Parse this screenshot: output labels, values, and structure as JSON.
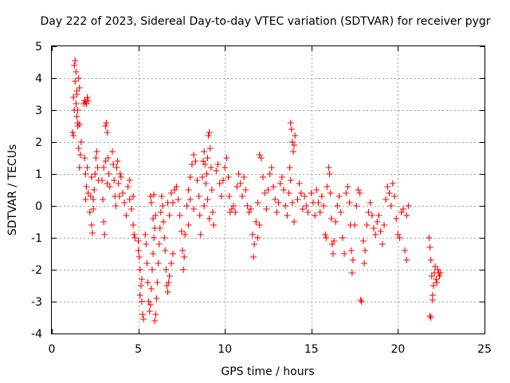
{
  "chart_data": {
    "type": "scatter",
    "title": "Day 222 of 2023, Sidereal Day-to-day VTEC variation (SDTVAR) for receiver pygr",
    "xlabel": "GPS time / hours",
    "ylabel": "SDTVAR / TECUs",
    "xlim": [
      0,
      25
    ],
    "ylim": [
      -4,
      5
    ],
    "xticks": [
      0,
      5,
      10,
      15,
      20,
      25
    ],
    "yticks": [
      -4,
      -3,
      -2,
      -1,
      0,
      1,
      2,
      3,
      4,
      5
    ],
    "xtick_labels": [
      "0",
      "5",
      "10",
      "15",
      "20",
      "25"
    ],
    "ytick_labels": [
      "-4",
      "-3",
      "-2",
      "-1",
      "0",
      "1",
      "2",
      "3",
      "4",
      "5"
    ],
    "grid": true,
    "marker": "+",
    "color": "#ff0000",
    "series": [
      {
        "name": "SDTVAR",
        "points": [
          [
            1.2,
            2.3
          ],
          [
            1.25,
            3.4
          ],
          [
            1.3,
            4.4
          ],
          [
            1.35,
            4.55
          ],
          [
            1.4,
            4.2
          ],
          [
            1.45,
            3.6
          ],
          [
            1.5,
            2.6
          ],
          [
            1.55,
            1.8
          ],
          [
            1.6,
            1.2
          ],
          [
            1.65,
            1.6
          ],
          [
            1.7,
            2.0
          ],
          [
            1.35,
            3.9
          ],
          [
            1.4,
            3.2
          ],
          [
            1.45,
            2.8
          ],
          [
            1.5,
            3.0
          ],
          [
            1.55,
            4.0
          ],
          [
            1.6,
            3.7
          ],
          [
            1.25,
            2.2
          ],
          [
            1.3,
            3.0
          ],
          [
            1.5,
            2.5
          ],
          [
            1.6,
            2.55
          ],
          [
            1.45,
            3.5
          ],
          [
            1.9,
            3.3
          ],
          [
            1.95,
            3.25
          ],
          [
            2.0,
            3.2
          ],
          [
            2.05,
            3.4
          ],
          [
            2.1,
            3.3
          ],
          [
            1.85,
            3.2
          ],
          [
            1.9,
            1.5
          ],
          [
            1.95,
            1.0
          ],
          [
            2.0,
            0.6
          ],
          [
            2.05,
            1.2
          ],
          [
            2.1,
            0.4
          ],
          [
            1.95,
            0.2
          ],
          [
            2.2,
            -0.2
          ],
          [
            2.25,
            0.3
          ],
          [
            2.3,
            -0.6
          ],
          [
            2.35,
            -0.85
          ],
          [
            2.4,
            -0.1
          ],
          [
            2.45,
            0.5
          ],
          [
            2.5,
            1.0
          ],
          [
            2.55,
            1.5
          ],
          [
            2.6,
            1.7
          ],
          [
            2.65,
            1.2
          ],
          [
            2.7,
            0.8
          ],
          [
            2.3,
            0.9
          ],
          [
            2.4,
            0.2
          ],
          [
            2.9,
            0.8
          ],
          [
            2.95,
            0.2
          ],
          [
            3.0,
            -0.5
          ],
          [
            3.05,
            -0.9
          ],
          [
            3.0,
            1.2
          ],
          [
            3.1,
            2.5
          ],
          [
            3.15,
            2.6
          ],
          [
            3.2,
            2.3
          ],
          [
            3.25,
            1.5
          ],
          [
            3.3,
            1.0
          ],
          [
            3.35,
            0.6
          ],
          [
            3.1,
            1.4
          ],
          [
            3.2,
            0.7
          ],
          [
            3.5,
            1.7
          ],
          [
            3.55,
            1.3
          ],
          [
            3.6,
            0.8
          ],
          [
            3.65,
            0.3
          ],
          [
            3.7,
            0.0
          ],
          [
            3.75,
            1.2
          ],
          [
            3.8,
            1.4
          ],
          [
            3.85,
            0.7
          ],
          [
            3.9,
            0.3
          ],
          [
            3.95,
            1.0
          ],
          [
            4.0,
            0.9
          ],
          [
            4.1,
            0.4
          ],
          [
            4.2,
            0.1
          ],
          [
            4.3,
            -0.3
          ],
          [
            4.4,
            0.6
          ],
          [
            4.5,
            0.2
          ],
          [
            4.6,
            -0.1
          ],
          [
            4.7,
            -0.6
          ],
          [
            4.75,
            -0.9
          ],
          [
            4.8,
            -1.0
          ],
          [
            4.7,
            0.3
          ],
          [
            4.5,
            0.8
          ],
          [
            5.0,
            -1.4
          ],
          [
            5.05,
            -1.6
          ],
          [
            5.1,
            -2.0
          ],
          [
            5.15,
            -2.5
          ],
          [
            5.2,
            -3.0
          ],
          [
            5.25,
            -3.4
          ],
          [
            5.3,
            -3.55
          ],
          [
            5.1,
            -2.8
          ],
          [
            5.2,
            -2.3
          ],
          [
            5.0,
            -1.1
          ],
          [
            5.4,
            -0.9
          ],
          [
            5.45,
            -1.2
          ],
          [
            5.5,
            -1.8
          ],
          [
            5.55,
            -2.4
          ],
          [
            5.6,
            -3.0
          ],
          [
            5.65,
            -3.3
          ],
          [
            5.7,
            -3.1
          ],
          [
            5.75,
            -2.6
          ],
          [
            5.8,
            -2.0
          ],
          [
            5.85,
            -1.5
          ],
          [
            5.9,
            -1.0
          ],
          [
            5.95,
            -0.7
          ],
          [
            6.0,
            -0.3
          ],
          [
            5.7,
            0.3
          ],
          [
            5.75,
            0.1
          ],
          [
            5.85,
            -0.4
          ],
          [
            5.9,
            0.35
          ],
          [
            5.95,
            -3.6
          ],
          [
            6.0,
            -3.4
          ],
          [
            6.05,
            -2.9
          ],
          [
            6.1,
            -2.4
          ],
          [
            6.15,
            -1.8
          ],
          [
            6.2,
            -1.2
          ],
          [
            6.25,
            -0.7
          ],
          [
            6.3,
            -0.2
          ],
          [
            6.35,
            0.3
          ],
          [
            6.4,
            0.0
          ],
          [
            6.45,
            -0.5
          ],
          [
            6.5,
            -1.0
          ],
          [
            6.55,
            -1.4
          ],
          [
            6.6,
            -2.0
          ],
          [
            6.65,
            -2.5
          ],
          [
            6.7,
            -2.7
          ],
          [
            6.75,
            -2.4
          ],
          [
            6.8,
            -2.2
          ],
          [
            6.9,
            -1.8
          ],
          [
            7.0,
            -1.5
          ],
          [
            6.7,
            0.1
          ],
          [
            6.8,
            -0.3
          ],
          [
            6.9,
            0.4
          ],
          [
            7.0,
            0.1
          ],
          [
            7.1,
            0.5
          ],
          [
            7.2,
            0.6
          ],
          [
            7.3,
            0.2
          ],
          [
            7.4,
            -0.3
          ],
          [
            7.5,
            -0.8
          ],
          [
            7.55,
            -1.4
          ],
          [
            7.6,
            -2.0
          ],
          [
            7.65,
            -1.6
          ],
          [
            7.7,
            -0.9
          ],
          [
            7.8,
            0.0
          ],
          [
            7.9,
            0.5
          ],
          [
            8.0,
            0.9
          ],
          [
            8.1,
            1.3
          ],
          [
            8.2,
            1.6
          ],
          [
            8.3,
            1.4
          ],
          [
            8.4,
            0.8
          ],
          [
            8.5,
            0.3
          ],
          [
            8.55,
            -0.3
          ],
          [
            8.6,
            -0.9
          ],
          [
            8.0,
            0.2
          ],
          [
            8.2,
            -0.1
          ],
          [
            7.9,
            -0.6
          ],
          [
            8.7,
            0.9
          ],
          [
            8.75,
            1.4
          ],
          [
            8.8,
            1.7
          ],
          [
            8.85,
            1.3
          ],
          [
            8.9,
            0.7
          ],
          [
            8.95,
            1.0
          ],
          [
            9.0,
            1.5
          ],
          [
            9.05,
            2.2
          ],
          [
            9.1,
            2.3
          ],
          [
            9.15,
            1.8
          ],
          [
            9.2,
            1.2
          ],
          [
            9.25,
            0.5
          ],
          [
            9.3,
            -0.2
          ],
          [
            9.35,
            -0.6
          ],
          [
            9.0,
            0.2
          ],
          [
            9.1,
            -0.4
          ],
          [
            8.8,
            0.0
          ],
          [
            9.5,
            1.1
          ],
          [
            9.6,
            1.3
          ],
          [
            9.7,
            0.7
          ],
          [
            9.8,
            0.3
          ],
          [
            9.9,
            0.8
          ],
          [
            10.0,
            1.2
          ],
          [
            10.1,
            1.5
          ],
          [
            10.2,
            0.9
          ],
          [
            10.25,
            0.3
          ],
          [
            10.3,
            -0.2
          ],
          [
            10.4,
            -0.1
          ],
          [
            10.5,
            0.0
          ],
          [
            10.6,
            -0.2
          ],
          [
            10.7,
            0.6
          ],
          [
            10.8,
            1.0
          ],
          [
            10.9,
            0.7
          ],
          [
            11.0,
            0.3
          ],
          [
            11.1,
            0.9
          ],
          [
            11.2,
            0.5
          ],
          [
            11.3,
            0.0
          ],
          [
            11.4,
            -0.2
          ],
          [
            11.5,
            -0.1
          ],
          [
            11.6,
            -0.9
          ],
          [
            11.65,
            -1.6
          ],
          [
            11.7,
            -1.2
          ],
          [
            11.8,
            -0.5
          ],
          [
            11.9,
            0.1
          ],
          [
            12.0,
            1.6
          ],
          [
            12.1,
            1.5
          ],
          [
            12.2,
            0.9
          ],
          [
            12.0,
            -0.6
          ],
          [
            11.9,
            -1.0
          ],
          [
            12.3,
            0.4
          ],
          [
            12.4,
            -0.1
          ],
          [
            12.5,
            0.5
          ],
          [
            12.6,
            1.0
          ],
          [
            12.7,
            1.2
          ],
          [
            12.8,
            0.6
          ],
          [
            12.9,
            0.2
          ],
          [
            13.0,
            -0.2
          ],
          [
            13.1,
            0.1
          ],
          [
            13.2,
            0.7
          ],
          [
            13.3,
            0.9
          ],
          [
            13.4,
            0.5
          ],
          [
            13.5,
            0.0
          ],
          [
            13.6,
            -0.3
          ],
          [
            13.7,
            0.4
          ],
          [
            13.8,
            2.6
          ],
          [
            13.85,
            2.4
          ],
          [
            13.9,
            2.0
          ],
          [
            13.95,
            1.7
          ],
          [
            14.0,
            1.9
          ],
          [
            14.05,
            2.2
          ],
          [
            13.8,
            0.8
          ],
          [
            13.9,
            0.1
          ],
          [
            14.0,
            -0.5
          ],
          [
            13.75,
            1.2
          ],
          [
            14.2,
            0.2
          ],
          [
            14.3,
            0.7
          ],
          [
            14.4,
            0.4
          ],
          [
            14.5,
            -0.1
          ],
          [
            14.6,
            0.3
          ],
          [
            14.7,
            0.0
          ],
          [
            14.8,
            -0.2
          ],
          [
            15.0,
            0.4
          ],
          [
            15.1,
            0.1
          ],
          [
            15.2,
            -0.3
          ],
          [
            15.3,
            0.5
          ],
          [
            15.4,
            0.1
          ],
          [
            15.5,
            -0.2
          ],
          [
            15.6,
            0.3
          ],
          [
            15.7,
            0.0
          ],
          [
            15.8,
            -0.9
          ],
          [
            15.85,
            -1.0
          ],
          [
            15.9,
            0.6
          ],
          [
            16.0,
            1.2
          ],
          [
            16.05,
            1.0
          ],
          [
            16.1,
            0.4
          ],
          [
            16.15,
            -0.4
          ],
          [
            16.2,
            -1.2
          ],
          [
            16.25,
            -1.5
          ],
          [
            16.3,
            -1.1
          ],
          [
            16.4,
            -0.5
          ],
          [
            16.5,
            0.0
          ],
          [
            16.6,
            0.3
          ],
          [
            16.7,
            -0.2
          ],
          [
            16.8,
            -1.0
          ],
          [
            16.9,
            -1.5
          ],
          [
            17.0,
            0.4
          ],
          [
            17.1,
            0.6
          ],
          [
            17.2,
            0.1
          ],
          [
            17.25,
            -0.6
          ],
          [
            17.3,
            -1.4
          ],
          [
            17.35,
            -2.1
          ],
          [
            17.4,
            -1.7
          ],
          [
            17.5,
            -0.6
          ],
          [
            17.6,
            0.0
          ],
          [
            17.7,
            0.5
          ],
          [
            17.8,
            0.4
          ],
          [
            17.85,
            -2.95
          ],
          [
            17.9,
            -3.0
          ],
          [
            18.0,
            -1.1
          ],
          [
            18.05,
            -1.8
          ],
          [
            18.1,
            -1.4
          ],
          [
            18.2,
            -0.6
          ],
          [
            18.3,
            -0.2
          ],
          [
            18.4,
            0.1
          ],
          [
            18.5,
            -0.3
          ],
          [
            18.6,
            -0.7
          ],
          [
            18.7,
            -0.9
          ],
          [
            18.8,
            -0.5
          ],
          [
            18.9,
            -0.3
          ],
          [
            19.0,
            -0.8
          ],
          [
            19.1,
            -1.2
          ],
          [
            19.2,
            -0.6
          ],
          [
            19.3,
            0.2
          ],
          [
            19.4,
            0.6
          ],
          [
            19.5,
            0.4
          ],
          [
            19.6,
            0.0
          ],
          [
            19.7,
            0.7
          ],
          [
            19.8,
            0.3
          ],
          [
            19.9,
            -0.4
          ],
          [
            20.0,
            -0.9
          ],
          [
            20.1,
            -1.0
          ],
          [
            20.2,
            -0.2
          ],
          [
            20.3,
            -0.1
          ],
          [
            20.4,
            -1.4
          ],
          [
            20.5,
            -1.7
          ],
          [
            20.6,
            0.0
          ],
          [
            20.5,
            -0.3
          ],
          [
            21.8,
            -1.0
          ],
          [
            21.85,
            -1.3
          ],
          [
            21.9,
            -1.7
          ],
          [
            21.95,
            -2.2
          ],
          [
            22.0,
            -2.8
          ],
          [
            22.05,
            -2.5
          ],
          [
            22.1,
            -2.1
          ],
          [
            22.2,
            -2.3
          ],
          [
            22.3,
            -2.0
          ],
          [
            22.4,
            -2.2
          ],
          [
            22.45,
            -2.1
          ],
          [
            21.85,
            -3.45
          ],
          [
            21.9,
            -3.5
          ],
          [
            22.0,
            -2.95
          ],
          [
            22.15,
            -1.9
          ],
          [
            22.25,
            -2.4
          ],
          [
            22.35,
            -2.1
          ]
        ]
      }
    ]
  }
}
